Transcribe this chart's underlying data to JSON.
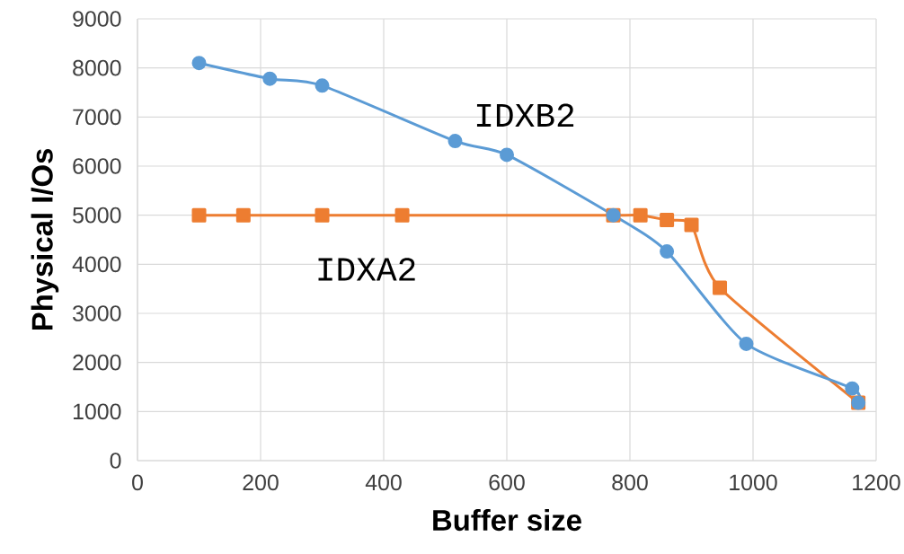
{
  "chart_data": {
    "type": "line",
    "xlabel": "Buffer size",
    "ylabel": "Physical I/Os",
    "xlim": [
      0,
      1200
    ],
    "xticks": [
      0,
      200,
      400,
      600,
      800,
      1000,
      1200
    ],
    "ylim": [
      0,
      9000
    ],
    "yticks": [
      0,
      1000,
      2000,
      3000,
      4000,
      5000,
      6000,
      7000,
      8000,
      9000
    ],
    "grid": true,
    "series": [
      {
        "name": "IDXB2",
        "color": "#5b9bd5",
        "marker": "circle",
        "x": [
          100,
          215,
          300,
          516,
          600,
          773,
          860,
          989,
          1161,
          1171
        ],
        "values": [
          8100,
          7780,
          7640,
          6510,
          6230,
          5000,
          4260,
          2380,
          1470,
          1180
        ]
      },
      {
        "name": "IDXA2",
        "color": "#ed7d31",
        "marker": "square",
        "x": [
          100,
          172,
          300,
          430,
          773,
          817,
          860,
          900,
          946,
          1171
        ],
        "values": [
          5000,
          5000,
          5000,
          5000,
          5000,
          5000,
          4900,
          4800,
          3520,
          1180
        ]
      }
    ]
  }
}
